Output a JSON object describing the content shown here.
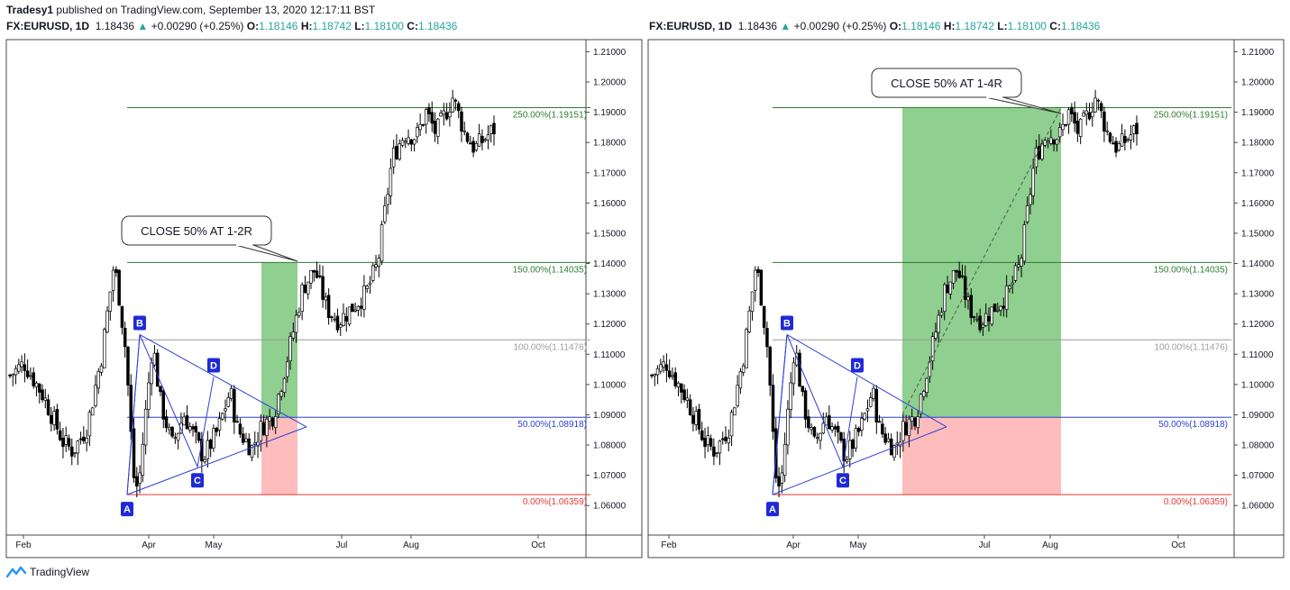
{
  "publish": {
    "author": "Tradesy1",
    "text": "published on TradingView.com, September 13, 2020 12:17:11 BST"
  },
  "brand": {
    "name": "TradingView",
    "icon": "tradingview-logo-icon"
  },
  "colors": {
    "up": "#26a69a",
    "level_green": "#2e7d32",
    "level_blue": "#2b3fd8",
    "level_gray": "#9e9e9e",
    "level_red": "#e53935",
    "profit_zone": "#8fcf8f",
    "loss_zone": "#ffbcbc"
  },
  "header": {
    "symbol": "FX:EURUSD, 1D",
    "last": "1.18436",
    "change": "+0.00290 (+0.25%)",
    "o_label": "O:",
    "o": "1.18146",
    "h_label": "H:",
    "h": "1.18742",
    "l_label": "L:",
    "l": "1.18100",
    "c_label": "C:",
    "c": "1.18436"
  },
  "chart_data": [
    {
      "type": "candlestick",
      "ylim": [
        1.055,
        1.214
      ],
      "y_ticks": [
        "1.21000",
        "1.20000",
        "1.19000",
        "1.18000",
        "1.17000",
        "1.16000",
        "1.15000",
        "1.14000",
        "1.13000",
        "1.12000",
        "1.11000",
        "1.10000",
        "1.09000",
        "1.08000",
        "1.07000",
        "1.06000"
      ],
      "x_ticks": [
        "Feb",
        "Apr",
        "May",
        "Jul",
        "Aug",
        "Oct"
      ],
      "levels": [
        {
          "label": "250.00%(1.19151)",
          "value": 1.19151,
          "color": "#2e7d32"
        },
        {
          "label": "150.00%(1.14035)",
          "value": 1.14035,
          "color": "#2e7d32"
        },
        {
          "label": "100.00%(1.11476)",
          "value": 1.11476,
          "color": "#9e9e9e"
        },
        {
          "label": "50.00%(1.08918)",
          "value": 1.08918,
          "color": "#2b3fd8"
        },
        {
          "label": "0.00%(1.06359)",
          "value": 1.06359,
          "color": "#e53935"
        }
      ],
      "pattern_points": [
        {
          "label": "A",
          "value": 1.0636
        },
        {
          "label": "B",
          "value": 1.1165
        },
        {
          "label": "C",
          "value": 1.0728
        },
        {
          "label": "D",
          "value": 1.1025
        }
      ],
      "callout": "CLOSE 50% AT 1-2R",
      "position": {
        "entry": 1.08918,
        "stop": 1.06359,
        "target": 1.14035
      }
    },
    {
      "type": "candlestick",
      "ylim": [
        1.055,
        1.214
      ],
      "y_ticks": [
        "1.21000",
        "1.20000",
        "1.19000",
        "1.18000",
        "1.17000",
        "1.16000",
        "1.15000",
        "1.14000",
        "1.13000",
        "1.12000",
        "1.11000",
        "1.10000",
        "1.09000",
        "1.08000",
        "1.07000",
        "1.06000"
      ],
      "x_ticks": [
        "Feb",
        "Apr",
        "May",
        "Jul",
        "Aug",
        "Oct"
      ],
      "levels": [
        {
          "label": "250.00%(1.19151)",
          "value": 1.19151,
          "color": "#2e7d32"
        },
        {
          "label": "150.00%(1.14035)",
          "value": 1.14035,
          "color": "#2e7d32"
        },
        {
          "label": "100.00%(1.11476)",
          "value": 1.11476,
          "color": "#9e9e9e"
        },
        {
          "label": "50.00%(1.08918)",
          "value": 1.08918,
          "color": "#2b3fd8"
        },
        {
          "label": "0.00%(1.06359)",
          "value": 1.06359,
          "color": "#e53935"
        }
      ],
      "pattern_points": [
        {
          "label": "A",
          "value": 1.0636
        },
        {
          "label": "B",
          "value": 1.1165
        },
        {
          "label": "C",
          "value": 1.0728
        },
        {
          "label": "D",
          "value": 1.1025
        }
      ],
      "callout": "CLOSE 50% AT 1-4R",
      "position": {
        "entry": 1.08918,
        "stop": 1.06359,
        "target": 1.19151
      }
    }
  ]
}
